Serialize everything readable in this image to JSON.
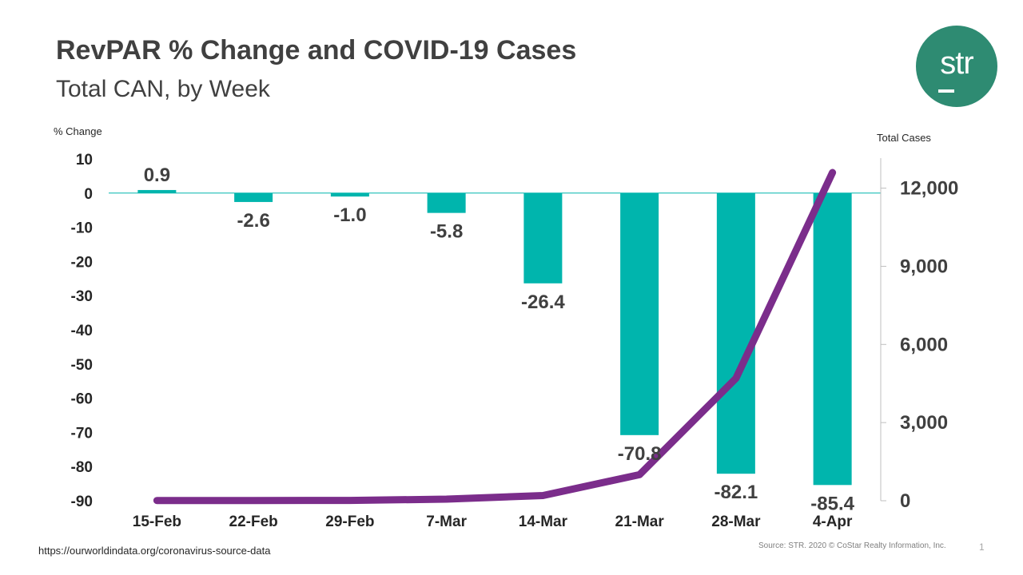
{
  "title": "RevPAR % Change and COVID-19 Cases",
  "subtitle": "Total CAN, by Week",
  "logo": {
    "text": "str",
    "color": "#2e8b72"
  },
  "footer": {
    "source_url": "https://ourworldindata.org/coronavirus-source-data",
    "credit": "Source: STR. 2020 © CoStar Realty Information, Inc.",
    "page_number": "1"
  },
  "chart_data": {
    "type": "bar",
    "categories": [
      "15-Feb",
      "22-Feb",
      "29-Feb",
      "7-Mar",
      "14-Mar",
      "21-Mar",
      "28-Mar",
      "4-Apr"
    ],
    "series": [
      {
        "type": "bar",
        "axis": "left",
        "color": "#00b5ad",
        "values": [
          0.9,
          -2.6,
          -1.0,
          -5.8,
          -26.4,
          -70.8,
          -82.1,
          -85.4
        ],
        "labels": [
          "0.9",
          "-2.6",
          "-1.0",
          "-5.8",
          "-26.4",
          "-70.8",
          "-82.1",
          "-85.4"
        ]
      },
      {
        "type": "line",
        "axis": "right",
        "color": "#7b2d8b",
        "values": [
          8,
          9,
          12,
          60,
          200,
          1000,
          4700,
          12600
        ]
      }
    ],
    "y_left": {
      "label": "% Change",
      "ylim": [
        -90,
        10
      ],
      "ticks": [
        10,
        0,
        -10,
        -20,
        -30,
        -40,
        -50,
        -60,
        -70,
        -80,
        -90
      ],
      "tick_labels": [
        "10",
        "0",
        "-10",
        "-20",
        "-30",
        "-40",
        "-50",
        "-60",
        "-70",
        "-80",
        "-90"
      ]
    },
    "y_right": {
      "label": "Total Cases",
      "ylim": [
        0,
        13000
      ],
      "ticks": [
        0,
        3000,
        6000,
        9000,
        12000
      ],
      "tick_labels": [
        "0",
        "3,000",
        "6,000",
        "9,000",
        "12,000"
      ]
    },
    "grid": false,
    "legend": "none"
  }
}
